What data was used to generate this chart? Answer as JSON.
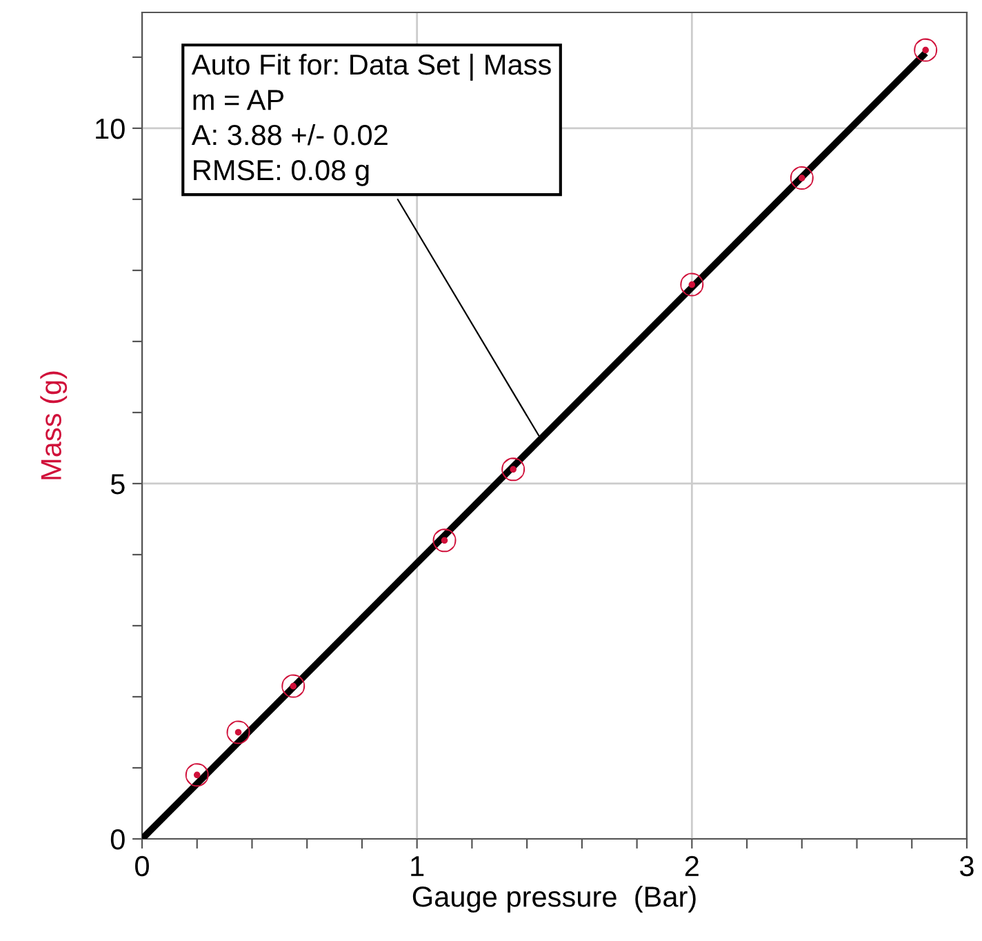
{
  "chart_data": {
    "type": "scatter",
    "xlabel": "Gauge pressure  (Bar)",
    "ylabel": "Mass (g)",
    "xlim": [
      0,
      3
    ],
    "ylim": [
      0,
      11.63
    ],
    "xticks": [
      0,
      {
        "value": 0.2,
        "label": null
      },
      {
        "value": 0.4,
        "label": null
      },
      {
        "value": 0.6,
        "label": null
      },
      {
        "value": 0.8,
        "label": null
      },
      1,
      {
        "value": 1.2,
        "label": null
      },
      {
        "value": 1.4,
        "label": null
      },
      {
        "value": 1.6,
        "label": null
      },
      {
        "value": 1.8,
        "label": null
      },
      2,
      {
        "value": 2.2,
        "label": null
      },
      {
        "value": 2.4,
        "label": null
      },
      {
        "value": 2.6,
        "label": null
      },
      {
        "value": 2.8,
        "label": null
      },
      3
    ],
    "yticks": [
      0,
      {
        "value": 1,
        "label": null
      },
      {
        "value": 2,
        "label": null
      },
      {
        "value": 3,
        "label": null
      },
      {
        "value": 4,
        "label": null
      },
      5,
      {
        "value": 6,
        "label": null
      },
      {
        "value": 7,
        "label": null
      },
      {
        "value": 8,
        "label": null
      },
      {
        "value": 9,
        "label": null
      },
      10,
      {
        "value": 11,
        "label": null
      }
    ],
    "grid": true,
    "series": [
      {
        "color": "#d0103a",
        "marker": "circle",
        "x": [
          0.2,
          0.35,
          0.55,
          1.1,
          1.35,
          2.0,
          2.4,
          2.85
        ],
        "values": [
          0.9,
          1.5,
          2.15,
          4.2,
          5.2,
          7.8,
          9.3,
          11.1
        ]
      },
      {
        "type": "line",
        "color": "#000000",
        "x": [
          0,
          2.85
        ],
        "values": [
          0,
          11.06
        ]
      }
    ],
    "annotations": [
      {
        "text": "Auto Fit for: Data Set | Mass\nm = AP\nA: 3.88 +/- 0.02\nRMSE: 0.08 g",
        "x": 1.45,
        "y": 5.63
      }
    ]
  }
}
